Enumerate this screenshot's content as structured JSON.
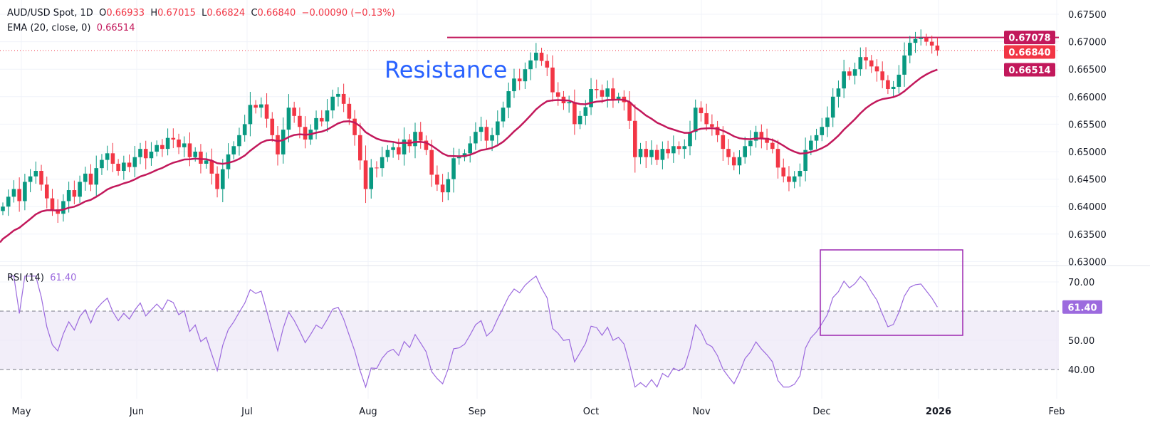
{
  "legend": {
    "symbol": "AUD/USD Spot, 1D",
    "o_label": "O",
    "o": "0.66933",
    "h_label": "H",
    "h": "0.67015",
    "l_label": "L",
    "l": "0.66824",
    "c_label": "C",
    "c": "0.66840",
    "change": "−0.00090 (−0.13%)",
    "ema_label": "EMA (20, close, 0)",
    "ema_value": "0.66514",
    "rsi_label": "RSI (14)",
    "rsi_value": "61.40"
  },
  "annotation": {
    "text": "Resistance",
    "color": "#2962ff"
  },
  "badges": {
    "resistance": "0.67078",
    "last": "0.66840",
    "ema": "0.66514",
    "rsi": "61.40"
  },
  "colors": {
    "up": "#089981",
    "down": "#f23645",
    "ema": "#c2185b",
    "resistance": "#c2185b",
    "rsi": "#9c6ade",
    "rsi_box": "#9c27b0",
    "rsi_band": "#ede7f6"
  },
  "chart_data": [
    {
      "type": "candlestick",
      "title": "AUD/USD Spot, 1D",
      "ylim": [
        0.63,
        0.6775
      ],
      "y_ticks": [
        "0.67500",
        "0.67000",
        "0.66500",
        "0.66000",
        "0.65500",
        "0.65000",
        "0.64500",
        "0.64000",
        "0.63500",
        "0.63000"
      ],
      "x_ticks": [
        "May",
        "Jun",
        "Jul",
        "Aug",
        "Sep",
        "Oct",
        "Nov",
        "Dec",
        "2026",
        "Feb"
      ],
      "grid": true,
      "first_open": 0.6392,
      "close": [
        0.64,
        0.6418,
        0.6432,
        0.641,
        0.6445,
        0.6455,
        0.6465,
        0.644,
        0.6415,
        0.6395,
        0.6387,
        0.641,
        0.643,
        0.6418,
        0.6445,
        0.646,
        0.644,
        0.647,
        0.6485,
        0.6497,
        0.6478,
        0.6465,
        0.648,
        0.6472,
        0.649,
        0.6505,
        0.6488,
        0.65,
        0.6512,
        0.6505,
        0.6525,
        0.6522,
        0.6508,
        0.6515,
        0.649,
        0.65,
        0.6478,
        0.6484,
        0.646,
        0.6432,
        0.6468,
        0.6495,
        0.651,
        0.653,
        0.655,
        0.6585,
        0.658,
        0.6586,
        0.656,
        0.653,
        0.6495,
        0.654,
        0.658,
        0.6565,
        0.6545,
        0.6522,
        0.654,
        0.6561,
        0.6555,
        0.6575,
        0.66,
        0.6605,
        0.6587,
        0.656,
        0.653,
        0.6484,
        0.6432,
        0.6471,
        0.647,
        0.649,
        0.6503,
        0.6508,
        0.6495,
        0.6522,
        0.651,
        0.6536,
        0.652,
        0.6503,
        0.6458,
        0.644,
        0.6426,
        0.645,
        0.6488,
        0.649,
        0.6497,
        0.6515,
        0.6536,
        0.6545,
        0.652,
        0.653,
        0.6555,
        0.658,
        0.661,
        0.6633,
        0.6628,
        0.665,
        0.6666,
        0.668,
        0.6665,
        0.6653,
        0.6608,
        0.66,
        0.6588,
        0.659,
        0.655,
        0.6565,
        0.6581,
        0.6614,
        0.6612,
        0.66,
        0.6615,
        0.6595,
        0.66,
        0.659,
        0.6556,
        0.649,
        0.6505,
        0.649,
        0.6503,
        0.6485,
        0.6505,
        0.6497,
        0.651,
        0.6505,
        0.651,
        0.6536,
        0.658,
        0.657,
        0.655,
        0.6545,
        0.653,
        0.6505,
        0.649,
        0.6475,
        0.649,
        0.651,
        0.652,
        0.6536,
        0.6525,
        0.6516,
        0.6505,
        0.6471,
        0.6455,
        0.6445,
        0.6455,
        0.6465,
        0.6503,
        0.652,
        0.653,
        0.6545,
        0.6562,
        0.66,
        0.6615,
        0.6646,
        0.6638,
        0.665,
        0.6672,
        0.6666,
        0.6655,
        0.6646,
        0.663,
        0.6614,
        0.6618,
        0.664,
        0.6675,
        0.6698,
        0.6705,
        0.6707,
        0.67,
        0.6693,
        0.6684
      ],
      "ema_period": 20,
      "resistance_level": 0.67078,
      "last_price": 0.6684
    },
    {
      "type": "line",
      "title": "RSI (14)",
      "ylim": [
        32,
        75
      ],
      "y_ticks": [
        "70.00",
        "50.00",
        "40.00"
      ],
      "band": [
        40,
        60
      ],
      "last_value": 61.4
    }
  ]
}
